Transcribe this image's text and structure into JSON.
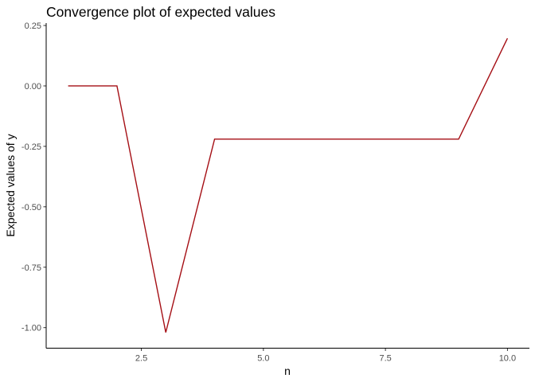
{
  "chart_data": {
    "type": "line",
    "title": "Convergence plot of expected values",
    "xlabel": "n",
    "ylabel": "Expected values of y",
    "xlim": [
      0.55,
      10.45
    ],
    "ylim": [
      -1.085,
      0.26
    ],
    "xticks": [
      2.5,
      5.0,
      7.5,
      10.0
    ],
    "xtick_labels": [
      "2.5",
      "5.0",
      "7.5",
      "10.0"
    ],
    "yticks": [
      0.25,
      0.0,
      -0.25,
      -0.5,
      -0.75,
      -1.0
    ],
    "ytick_labels": [
      "0.25",
      "0.00",
      "-0.25",
      "-0.50",
      "-0.75",
      "-1.00"
    ],
    "grid": false,
    "series": [
      {
        "color": "#a50f15",
        "x": [
          1,
          2,
          3,
          4,
          5,
          6,
          7,
          8,
          9,
          10
        ],
        "y": [
          0.0,
          0.0,
          -1.02,
          -0.22,
          -0.22,
          -0.22,
          -0.22,
          -0.22,
          -0.22,
          0.197
        ]
      }
    ]
  }
}
